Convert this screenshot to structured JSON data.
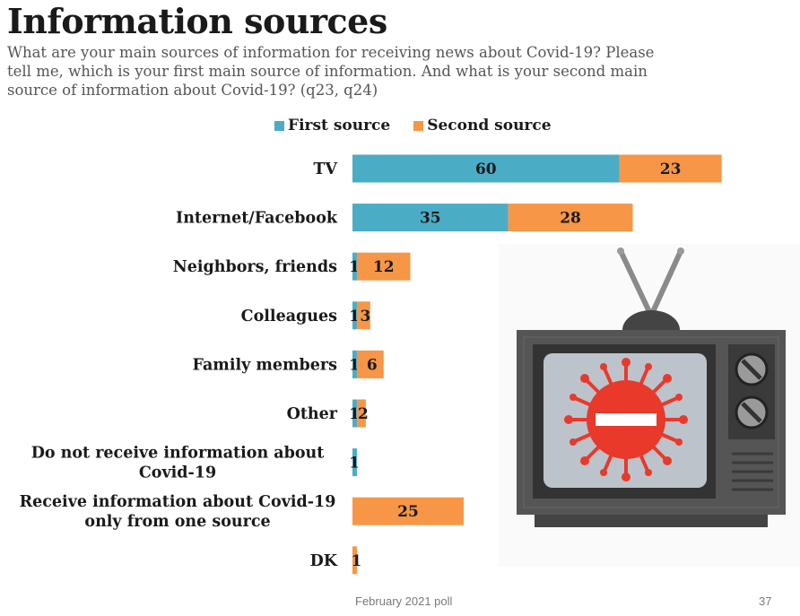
{
  "header": {
    "title": "Information sources",
    "subtitle": "What are your main sources of information for receiving news about Covid-19? Please tell me, which is your first main source of information. And what is your second main source of information about Covid-19? (q23, q24)"
  },
  "footer": {
    "poll": "February 2021 poll",
    "page": "37"
  },
  "illustration": {
    "icon": "tv-virus-icon"
  },
  "colors": {
    "first": "#4bacc6",
    "second": "#f79646"
  },
  "chart_data": {
    "type": "bar",
    "orientation": "horizontal",
    "stacked": true,
    "title": "Information sources",
    "xlim": [
      0,
      100
    ],
    "legend": [
      "First source",
      "Second source"
    ],
    "legend_position": "top",
    "categories": [
      "TV",
      "Internet/Facebook",
      "Neighbors, friends",
      "Colleagues",
      "Family members",
      "Other",
      "Do not receive information about Covid-19",
      "Receive information about Covid-19 only from one source",
      "DK"
    ],
    "category_lines": [
      [
        "TV"
      ],
      [
        "Internet/Facebook"
      ],
      [
        "Neighbors, friends"
      ],
      [
        "Colleagues"
      ],
      [
        "Family members"
      ],
      [
        "Other"
      ],
      [
        "Do not receive information about",
        "Covid-19"
      ],
      [
        "Receive information about Covid-19",
        "only from one source"
      ],
      [
        "DK"
      ]
    ],
    "series": [
      {
        "name": "First source",
        "values": [
          60,
          35,
          1,
          1,
          1,
          1,
          1,
          null,
          null
        ],
        "labels": [
          "60",
          "35",
          "1",
          "1",
          "1",
          "1",
          "1",
          "",
          ""
        ]
      },
      {
        "name": "Second source",
        "values": [
          23,
          28,
          12,
          3,
          6,
          2,
          null,
          25,
          1
        ],
        "labels": [
          "23",
          "28",
          "12",
          "3",
          "6",
          "2",
          "",
          "25",
          "1"
        ]
      }
    ]
  }
}
